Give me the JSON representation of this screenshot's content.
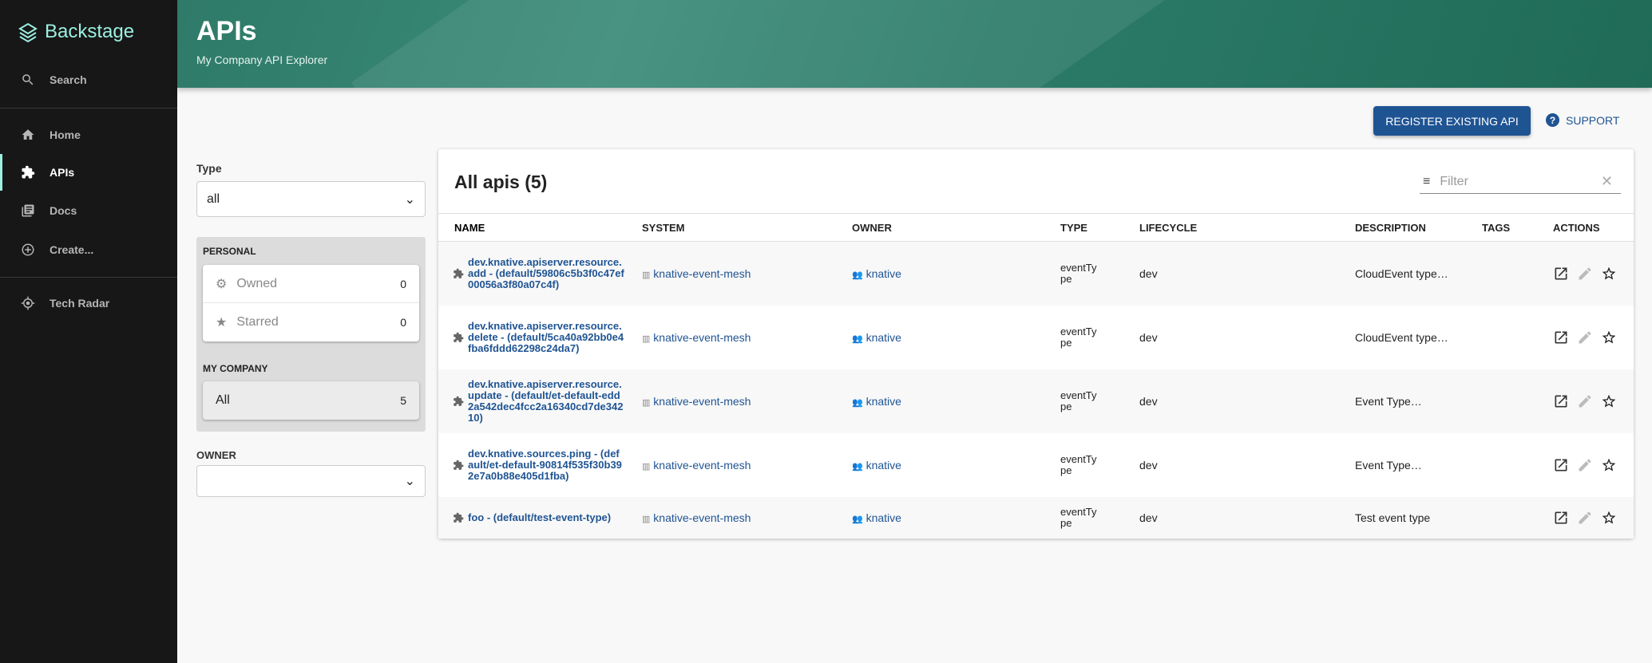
{
  "sidebar": {
    "logo": "Backstage",
    "search": "Search",
    "items": [
      {
        "label": "Home",
        "icon": "home-icon"
      },
      {
        "label": "APIs",
        "icon": "puzzle-icon",
        "active": true
      },
      {
        "label": "Docs",
        "icon": "library-icon"
      },
      {
        "label": "Create...",
        "icon": "add-circle-icon"
      }
    ],
    "tech_radar": "Tech Radar"
  },
  "header": {
    "title": "APIs",
    "subtitle": "My Company API Explorer"
  },
  "toolbar": {
    "register": "REGISTER EXISTING API",
    "support": "SUPPORT"
  },
  "filters": {
    "type_label": "Type",
    "type_value": "all",
    "personal": "PERSONAL",
    "owned": "Owned",
    "owned_count": "0",
    "starred": "Starred",
    "starred_count": "0",
    "company": "MY COMPANY",
    "all": "All",
    "all_count": "5",
    "owner_label": "OWNER",
    "owner_value": ""
  },
  "table": {
    "title": "All apis (5)",
    "filter_placeholder": "Filter",
    "columns": [
      "NAME",
      "SYSTEM",
      "OWNER",
      "TYPE",
      "LIFECYCLE",
      "DESCRIPTION",
      "TAGS",
      "ACTIONS"
    ],
    "rows": [
      {
        "name": "dev.knative.apiserver.resource.add - (default/59806c5b3f0c47ef00056a3f80a07c4f)",
        "system": "knative-event-mesh",
        "owner": "knative",
        "type": "eventType",
        "lifecycle": "dev",
        "description": "CloudEvent type…"
      },
      {
        "name": "dev.knative.apiserver.resource.delete - (default/5ca40a92bb0e4fba6fddd62298c24da7)",
        "system": "knative-event-mesh",
        "owner": "knative",
        "type": "eventType",
        "lifecycle": "dev",
        "description": "CloudEvent type…"
      },
      {
        "name": "dev.knative.apiserver.resource.update - (default/et-default-edd2a542dec4fcc2a16340cd7de34210)",
        "system": "knative-event-mesh",
        "owner": "knative",
        "type": "eventType",
        "lifecycle": "dev",
        "description": "Event Type…"
      },
      {
        "name": "dev.knative.sources.ping - (default/et-default-90814f535f30b392e7a0b88e405d1fba)",
        "system": "knative-event-mesh",
        "owner": "knative",
        "type": "eventType",
        "lifecycle": "dev",
        "description": "Event Type…"
      },
      {
        "name": "foo - (default/test-event-type)",
        "system": "knative-event-mesh",
        "owner": "knative",
        "type": "eventType",
        "lifecycle": "dev",
        "description": "Test event type"
      }
    ]
  },
  "colors": {
    "accent": "#1f5493",
    "sidebar": "#171717",
    "logo": "#9bf0e1",
    "header": "#2f7a68"
  }
}
